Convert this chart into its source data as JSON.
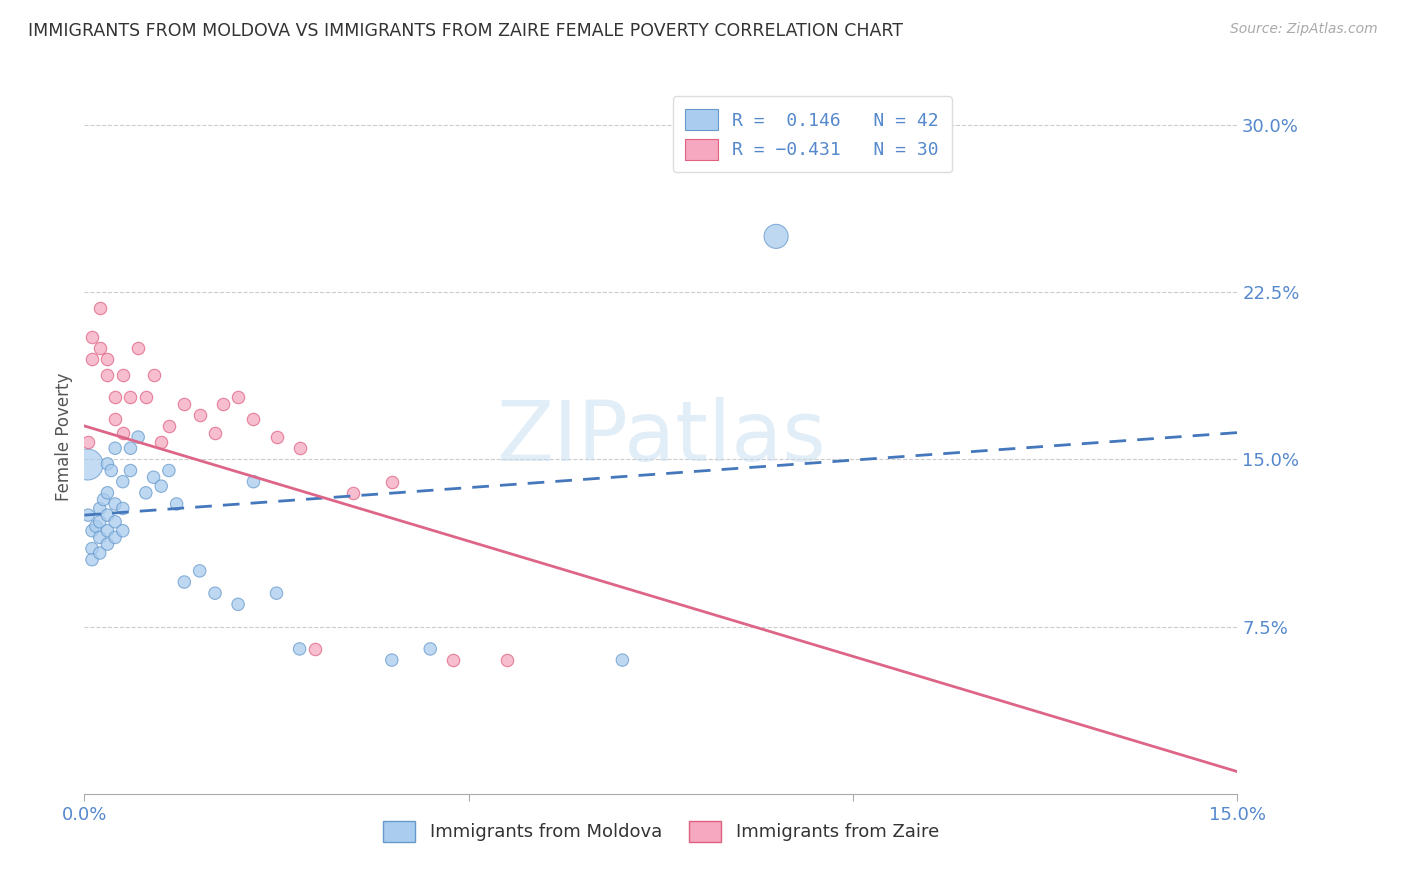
{
  "title": "IMMIGRANTS FROM MOLDOVA VS IMMIGRANTS FROM ZAIRE FEMALE POVERTY CORRELATION CHART",
  "source": "Source: ZipAtlas.com",
  "ylabel": "Female Poverty",
  "xlim": [
    0.0,
    0.15
  ],
  "ylim": [
    0.0,
    0.32
  ],
  "yticks": [
    0.075,
    0.15,
    0.225,
    0.3
  ],
  "xticks": [
    0.0,
    0.15
  ],
  "moldova_color": "#aaccee",
  "zaire_color": "#f5a8c0",
  "moldova_edge_color": "#6699cc",
  "zaire_edge_color": "#e06080",
  "moldova_line_color": "#4477bb",
  "zaire_line_color": "#dd6688",
  "tick_color": "#5588cc",
  "watermark_text": "ZIPatlas",
  "moldova_trend_x0": 0.0,
  "moldova_trend_y0": 0.125,
  "moldova_trend_x1": 0.15,
  "moldova_trend_y1": 0.162,
  "zaire_trend_x0": 0.0,
  "zaire_trend_y0": 0.165,
  "zaire_trend_x1": 0.15,
  "zaire_trend_y1": 0.01,
  "moldova_scatter_x": [
    0.0005,
    0.001,
    0.001,
    0.001,
    0.0015,
    0.002,
    0.002,
    0.002,
    0.002,
    0.0025,
    0.003,
    0.003,
    0.003,
    0.003,
    0.003,
    0.0035,
    0.004,
    0.004,
    0.004,
    0.004,
    0.005,
    0.005,
    0.005,
    0.006,
    0.006,
    0.007,
    0.008,
    0.009,
    0.01,
    0.011,
    0.012,
    0.013,
    0.015,
    0.017,
    0.02,
    0.022,
    0.025,
    0.028,
    0.04,
    0.045,
    0.07,
    0.09
  ],
  "moldova_scatter_y": [
    0.125,
    0.118,
    0.11,
    0.105,
    0.12,
    0.128,
    0.122,
    0.115,
    0.108,
    0.132,
    0.148,
    0.135,
    0.125,
    0.118,
    0.112,
    0.145,
    0.155,
    0.13,
    0.122,
    0.115,
    0.14,
    0.128,
    0.118,
    0.155,
    0.145,
    0.16,
    0.135,
    0.142,
    0.138,
    0.145,
    0.13,
    0.095,
    0.1,
    0.09,
    0.085,
    0.14,
    0.09,
    0.065,
    0.06,
    0.065,
    0.06,
    0.25
  ],
  "moldova_scatter_sizes": [
    80,
    80,
    80,
    80,
    80,
    80,
    80,
    80,
    80,
    80,
    80,
    80,
    80,
    80,
    80,
    80,
    80,
    80,
    80,
    80,
    80,
    80,
    80,
    80,
    80,
    80,
    80,
    80,
    80,
    80,
    80,
    80,
    80,
    80,
    80,
    80,
    80,
    80,
    80,
    80,
    80,
    300
  ],
  "zaire_scatter_x": [
    0.0005,
    0.001,
    0.001,
    0.002,
    0.002,
    0.003,
    0.003,
    0.004,
    0.004,
    0.005,
    0.005,
    0.006,
    0.007,
    0.008,
    0.009,
    0.01,
    0.011,
    0.013,
    0.015,
    0.017,
    0.018,
    0.02,
    0.022,
    0.025,
    0.028,
    0.03,
    0.035,
    0.04,
    0.048,
    0.055
  ],
  "zaire_scatter_y": [
    0.158,
    0.205,
    0.195,
    0.218,
    0.2,
    0.195,
    0.188,
    0.178,
    0.168,
    0.188,
    0.162,
    0.178,
    0.2,
    0.178,
    0.188,
    0.158,
    0.165,
    0.175,
    0.17,
    0.162,
    0.175,
    0.178,
    0.168,
    0.16,
    0.155,
    0.065,
    0.135,
    0.14,
    0.06,
    0.06
  ],
  "legend1_label": "R =  0.146   N = 42",
  "legend2_label": "R = −0.431   N = 30",
  "bottom_legend1": "Immigrants from Moldova",
  "bottom_legend2": "Immigrants from Zaire"
}
